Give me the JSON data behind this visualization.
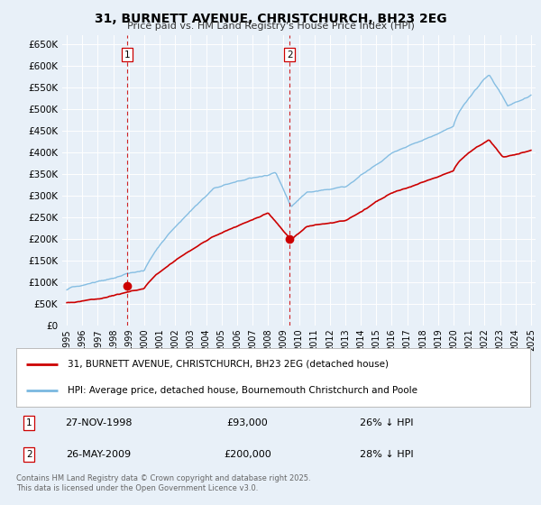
{
  "title_line1": "31, BURNETT AVENUE, CHRISTCHURCH, BH23 2EG",
  "title_line2": "Price paid vs. HM Land Registry's House Price Index (HPI)",
  "background_color": "#e8f0f8",
  "plot_bg_color": "#e8f0f8",
  "grid_color": "#ffffff",
  "hpi_color": "#7ab8e0",
  "price_color": "#cc0000",
  "marker_color": "#cc0000",
  "vline_color": "#cc0000",
  "sale1_price": 93000,
  "sale1_year": 1998.9,
  "sale1_date_str": "27-NOV-1998",
  "sale1_hpi_diff": "26% ↓ HPI",
  "sale2_price": 200000,
  "sale2_year": 2009.4,
  "sale2_date_str": "26-MAY-2009",
  "sale2_hpi_diff": "28% ↓ HPI",
  "legend_label_red": "31, BURNETT AVENUE, CHRISTCHURCH, BH23 2EG (detached house)",
  "legend_label_blue": "HPI: Average price, detached house, Bournemouth Christchurch and Poole",
  "footer": "Contains HM Land Registry data © Crown copyright and database right 2025.\nThis data is licensed under the Open Government Licence v3.0.",
  "ylim_max": 670000,
  "yticks": [
    0,
    50000,
    100000,
    150000,
    200000,
    250000,
    300000,
    350000,
    400000,
    450000,
    500000,
    550000,
    600000,
    650000
  ],
  "xmin": 1994.7,
  "xmax": 2025.3,
  "xtick_years": [
    1995,
    1996,
    1997,
    1998,
    1999,
    2000,
    2001,
    2002,
    2003,
    2004,
    2005,
    2006,
    2007,
    2008,
    2009,
    2010,
    2011,
    2012,
    2013,
    2014,
    2015,
    2016,
    2017,
    2018,
    2019,
    2020,
    2021,
    2022,
    2023,
    2024,
    2025
  ]
}
